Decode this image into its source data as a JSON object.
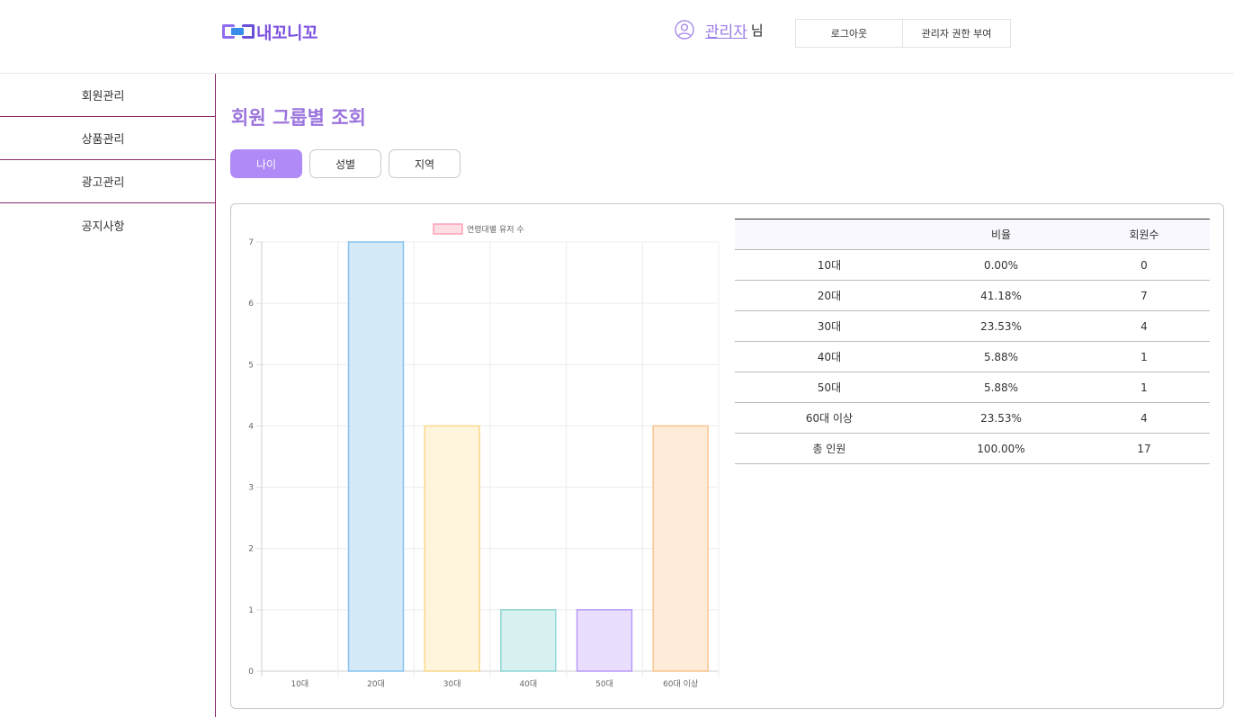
{
  "header": {
    "logo_text": "내꼬니꼬",
    "user_name": "관리자",
    "user_suffix": "님",
    "logout_label": "로그아웃",
    "grant_label": "관리자 권한 부여"
  },
  "sidebar": {
    "items": [
      {
        "label": "회원관리"
      },
      {
        "label": "상품관리"
      },
      {
        "label": "광고관리"
      },
      {
        "label": "공지사항"
      }
    ]
  },
  "main": {
    "title": "회원 그룹별 조회",
    "tabs": [
      {
        "label": "나이",
        "active": true
      },
      {
        "label": "성별",
        "active": false
      },
      {
        "label": "지역",
        "active": false
      }
    ]
  },
  "table": {
    "headers": [
      "",
      "비율",
      "회원수"
    ],
    "rows": [
      [
        "10대",
        "0.00%",
        "0"
      ],
      [
        "20대",
        "41.18%",
        "7"
      ],
      [
        "30대",
        "23.53%",
        "4"
      ],
      [
        "40대",
        "5.88%",
        "1"
      ],
      [
        "50대",
        "5.88%",
        "1"
      ],
      [
        "60대 이상",
        "23.53%",
        "4"
      ],
      [
        "총 인원",
        "100.00%",
        "17"
      ]
    ]
  },
  "chart_data": {
    "type": "bar",
    "categories": [
      "10대",
      "20대",
      "30대",
      "40대",
      "50대",
      "60대 이상"
    ],
    "series": [
      {
        "name": "연령대별 유저 수",
        "values": [
          0,
          7,
          4,
          1,
          1,
          4
        ]
      }
    ],
    "ylim": [
      0,
      7
    ],
    "yticks": [
      0,
      1,
      2,
      3,
      4,
      5,
      6,
      7
    ],
    "grid": true,
    "legend": "top-center",
    "legend_swatch": {
      "fill": "#ffdde4",
      "stroke": "#ff8fa8"
    },
    "bar_colors": [
      {
        "fill": "#ffdde4",
        "stroke": "#ff8fa8"
      },
      {
        "fill": "#d4eaf9",
        "stroke": "#86c2ee"
      },
      {
        "fill": "#fff4dc",
        "stroke": "#f9d98a"
      },
      {
        "fill": "#d7f1f1",
        "stroke": "#8fd5d5"
      },
      {
        "fill": "#e9defe",
        "stroke": "#b99af6"
      },
      {
        "fill": "#ffecd8",
        "stroke": "#f7c38e"
      }
    ]
  },
  "colors": {
    "accent": "#b08af6",
    "title": "#9b74dc",
    "sidebar_border": "#8a2a6a"
  },
  "icons": {
    "user": "user-circle-icon"
  }
}
